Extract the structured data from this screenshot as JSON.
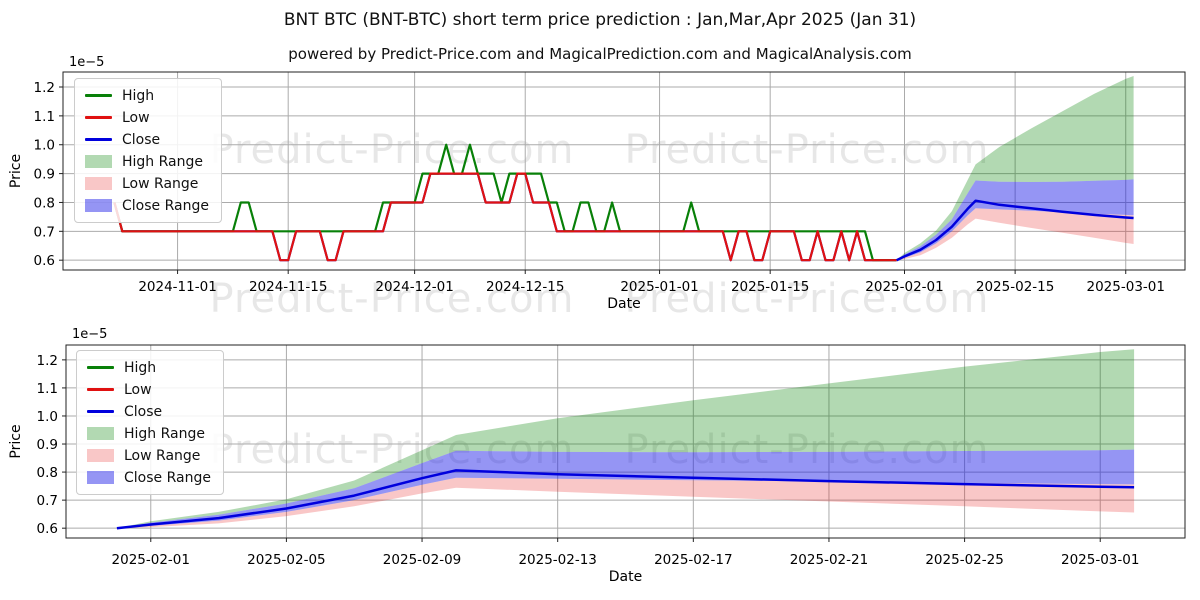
{
  "page": {
    "title": "BNT BTC (BNT-BTC) short term price prediction : Jan,Mar,Apr 2025 (Jan 31)",
    "subtitle": "powered by Predict-Price.com and MagicalPrediction.com and MagicalAnalysis.com",
    "watermark": "Predict-Price.com"
  },
  "colors": {
    "high": "#088008",
    "low": "#E01111",
    "close": "#0000DD",
    "high_range": "#0080004D",
    "low_range": "#E614143D",
    "close_range": "#1414E673",
    "grid": "#ABABAB",
    "spine": "#222222",
    "text": "#000000",
    "watermark": "#00000018"
  },
  "legend": {
    "items": [
      {
        "label": "High",
        "swatch": "line",
        "color": "high"
      },
      {
        "label": "Low",
        "swatch": "line",
        "color": "low"
      },
      {
        "label": "Close",
        "swatch": "line",
        "color": "close"
      },
      {
        "label": "High Range",
        "swatch": "patch",
        "color": "high_range"
      },
      {
        "label": "Low Range",
        "swatch": "patch",
        "color": "low_range"
      },
      {
        "label": "Close Range",
        "swatch": "patch",
        "color": "close_range"
      }
    ]
  },
  "chart_data": [
    {
      "type": "line",
      "name": "price-history-and-forecast-chart",
      "title": "",
      "xlabel": "Date",
      "ylabel": "Price",
      "scale_label": "1e−5",
      "grid": true,
      "legend_position": "upper left",
      "ylim": [
        0.566,
        1.252
      ],
      "xlim": [
        "2024-10-17T12:00:00",
        "2025-03-08T12:00:00"
      ],
      "ytick_values": [
        0.6,
        0.7,
        0.8,
        0.9,
        1.0,
        1.1,
        1.2
      ],
      "ytick_labels": [
        "0.6",
        "0.7",
        "0.8",
        "0.9",
        "1.0",
        "1.1",
        "1.2"
      ],
      "xticks": [
        "2024-11-01",
        "2024-11-15",
        "2024-12-01",
        "2024-12-15",
        "2025-01-01",
        "2025-01-15",
        "2025-02-01",
        "2025-02-15",
        "2025-03-01"
      ],
      "history": {
        "start_date": "2024-10-24",
        "high": [
          0.8,
          0.7,
          0.7,
          0.7,
          0.7,
          0.7,
          0.7,
          0.7,
          0.7,
          0.7,
          0.7,
          0.7,
          0.7,
          0.7,
          0.7,
          0.7,
          0.8,
          0.8,
          0.7,
          0.7,
          0.7,
          0.7,
          0.7,
          0.7,
          0.7,
          0.7,
          0.7,
          0.7,
          0.7,
          0.7,
          0.7,
          0.7,
          0.7,
          0.7,
          0.8,
          0.8,
          0.8,
          0.8,
          0.8,
          0.9,
          0.9,
          0.9,
          1.0,
          0.9,
          0.9,
          1.0,
          0.9,
          0.9,
          0.9,
          0.8,
          0.9,
          0.9,
          0.9,
          0.9,
          0.9,
          0.8,
          0.8,
          0.7,
          0.7,
          0.8,
          0.8,
          0.7,
          0.7,
          0.8,
          0.7,
          0.7,
          0.7,
          0.7,
          0.7,
          0.7,
          0.7,
          0.7,
          0.7,
          0.8,
          0.7,
          0.7,
          0.7,
          0.7,
          0.7,
          0.7,
          0.7,
          0.7,
          0.7,
          0.7,
          0.7,
          0.7,
          0.7,
          0.7,
          0.7,
          0.7,
          0.7,
          0.7,
          0.7,
          0.7,
          0.7,
          0.7,
          0.6,
          0.6,
          0.6,
          0.6
        ],
        "low": [
          0.8,
          0.7,
          0.7,
          0.7,
          0.7,
          0.7,
          0.7,
          0.7,
          0.7,
          0.7,
          0.7,
          0.7,
          0.7,
          0.7,
          0.7,
          0.7,
          0.7,
          0.7,
          0.7,
          0.7,
          0.7,
          0.6,
          0.6,
          0.7,
          0.7,
          0.7,
          0.7,
          0.6,
          0.6,
          0.7,
          0.7,
          0.7,
          0.7,
          0.7,
          0.7,
          0.8,
          0.8,
          0.8,
          0.8,
          0.8,
          0.9,
          0.9,
          0.9,
          0.9,
          0.9,
          0.9,
          0.9,
          0.8,
          0.8,
          0.8,
          0.8,
          0.9,
          0.9,
          0.8,
          0.8,
          0.8,
          0.7,
          0.7,
          0.7,
          0.7,
          0.7,
          0.7,
          0.7,
          0.7,
          0.7,
          0.7,
          0.7,
          0.7,
          0.7,
          0.7,
          0.7,
          0.7,
          0.7,
          0.7,
          0.7,
          0.7,
          0.7,
          0.7,
          0.6,
          0.7,
          0.7,
          0.6,
          0.6,
          0.7,
          0.7,
          0.7,
          0.7,
          0.6,
          0.6,
          0.7,
          0.6,
          0.6,
          0.7,
          0.6,
          0.7,
          0.6,
          0.6,
          0.6,
          0.6,
          0.6
        ],
        "close": [
          0.8,
          0.7,
          0.7,
          0.7,
          0.7,
          0.7,
          0.7,
          0.7,
          0.7,
          0.7,
          0.7,
          0.7,
          0.7,
          0.7,
          0.7,
          0.7,
          0.7,
          0.7,
          0.7,
          0.7,
          0.7,
          0.6,
          0.6,
          0.7,
          0.7,
          0.7,
          0.7,
          0.6,
          0.6,
          0.7,
          0.7,
          0.7,
          0.7,
          0.7,
          0.7,
          0.8,
          0.8,
          0.8,
          0.8,
          0.8,
          0.9,
          0.9,
          0.9,
          0.9,
          0.9,
          0.9,
          0.9,
          0.8,
          0.8,
          0.8,
          0.8,
          0.9,
          0.9,
          0.8,
          0.8,
          0.8,
          0.7,
          0.7,
          0.7,
          0.7,
          0.7,
          0.7,
          0.7,
          0.7,
          0.7,
          0.7,
          0.7,
          0.7,
          0.7,
          0.7,
          0.7,
          0.7,
          0.7,
          0.7,
          0.7,
          0.7,
          0.7,
          0.7,
          0.6,
          0.7,
          0.7,
          0.6,
          0.6,
          0.7,
          0.7,
          0.7,
          0.7,
          0.6,
          0.6,
          0.7,
          0.6,
          0.6,
          0.7,
          0.6,
          0.7,
          0.6,
          0.6,
          0.6,
          0.6,
          0.6
        ]
      },
      "forecast": {
        "dates": [
          "2025-01-31",
          "2025-02-01",
          "2025-02-03",
          "2025-02-05",
          "2025-02-07",
          "2025-02-09",
          "2025-02-10",
          "2025-02-13",
          "2025-02-17",
          "2025-02-21",
          "2025-02-25",
          "2025-03-01",
          "2025-03-02"
        ],
        "close": [
          0.6,
          0.613,
          0.636,
          0.67,
          0.716,
          0.778,
          0.806,
          0.792,
          0.78,
          0.768,
          0.757,
          0.748,
          0.746
        ],
        "close_upper": [
          0.6,
          0.62,
          0.648,
          0.688,
          0.742,
          0.832,
          0.876,
          0.872,
          0.871,
          0.872,
          0.875,
          0.878,
          0.88
        ],
        "close_lower": [
          0.6,
          0.608,
          0.627,
          0.658,
          0.7,
          0.755,
          0.78,
          0.776,
          0.771,
          0.766,
          0.761,
          0.757,
          0.756
        ],
        "high_upper": [
          0.6,
          0.625,
          0.658,
          0.703,
          0.77,
          0.878,
          0.932,
          0.992,
          1.056,
          1.116,
          1.176,
          1.228,
          1.238
        ],
        "low_upper": [
          0.6,
          0.608,
          0.627,
          0.658,
          0.7,
          0.755,
          0.78,
          0.776,
          0.771,
          0.766,
          0.761,
          0.757,
          0.756
        ],
        "low_lower": [
          0.6,
          0.604,
          0.617,
          0.643,
          0.678,
          0.724,
          0.744,
          0.73,
          0.712,
          0.695,
          0.678,
          0.66,
          0.656
        ]
      }
    },
    {
      "type": "line",
      "name": "forecast-detail-chart",
      "title": "",
      "xlabel": "Date",
      "ylabel": "Price",
      "scale_label": "1e−5",
      "grid": true,
      "legend_position": "upper left",
      "ylim": [
        0.565,
        1.253
      ],
      "xlim": [
        "2025-01-29T12:00:00",
        "2025-03-03T12:00:00"
      ],
      "ytick_values": [
        0.6,
        0.7,
        0.8,
        0.9,
        1.0,
        1.1,
        1.2
      ],
      "ytick_labels": [
        "0.6",
        "0.7",
        "0.8",
        "0.9",
        "1.0",
        "1.1",
        "1.2"
      ],
      "xticks": [
        "2025-02-01",
        "2025-02-05",
        "2025-02-09",
        "2025-02-13",
        "2025-02-17",
        "2025-02-21",
        "2025-02-25",
        "2025-03-01"
      ],
      "forecast": {
        "dates": [
          "2025-01-31",
          "2025-02-01",
          "2025-02-03",
          "2025-02-05",
          "2025-02-07",
          "2025-02-09",
          "2025-02-10",
          "2025-02-13",
          "2025-02-17",
          "2025-02-21",
          "2025-02-25",
          "2025-03-01",
          "2025-03-02"
        ],
        "close": [
          0.6,
          0.613,
          0.636,
          0.67,
          0.716,
          0.778,
          0.806,
          0.792,
          0.78,
          0.768,
          0.757,
          0.748,
          0.746
        ],
        "close_upper": [
          0.6,
          0.62,
          0.648,
          0.688,
          0.742,
          0.832,
          0.876,
          0.872,
          0.871,
          0.872,
          0.875,
          0.878,
          0.88
        ],
        "close_lower": [
          0.6,
          0.608,
          0.627,
          0.658,
          0.7,
          0.755,
          0.78,
          0.776,
          0.771,
          0.766,
          0.761,
          0.757,
          0.756
        ],
        "high_upper": [
          0.6,
          0.625,
          0.658,
          0.703,
          0.77,
          0.878,
          0.932,
          0.992,
          1.056,
          1.116,
          1.176,
          1.228,
          1.238
        ],
        "low_upper": [
          0.6,
          0.608,
          0.627,
          0.658,
          0.7,
          0.755,
          0.78,
          0.776,
          0.771,
          0.766,
          0.761,
          0.757,
          0.756
        ],
        "low_lower": [
          0.6,
          0.604,
          0.617,
          0.643,
          0.678,
          0.724,
          0.744,
          0.73,
          0.712,
          0.695,
          0.678,
          0.66,
          0.656
        ]
      }
    }
  ]
}
